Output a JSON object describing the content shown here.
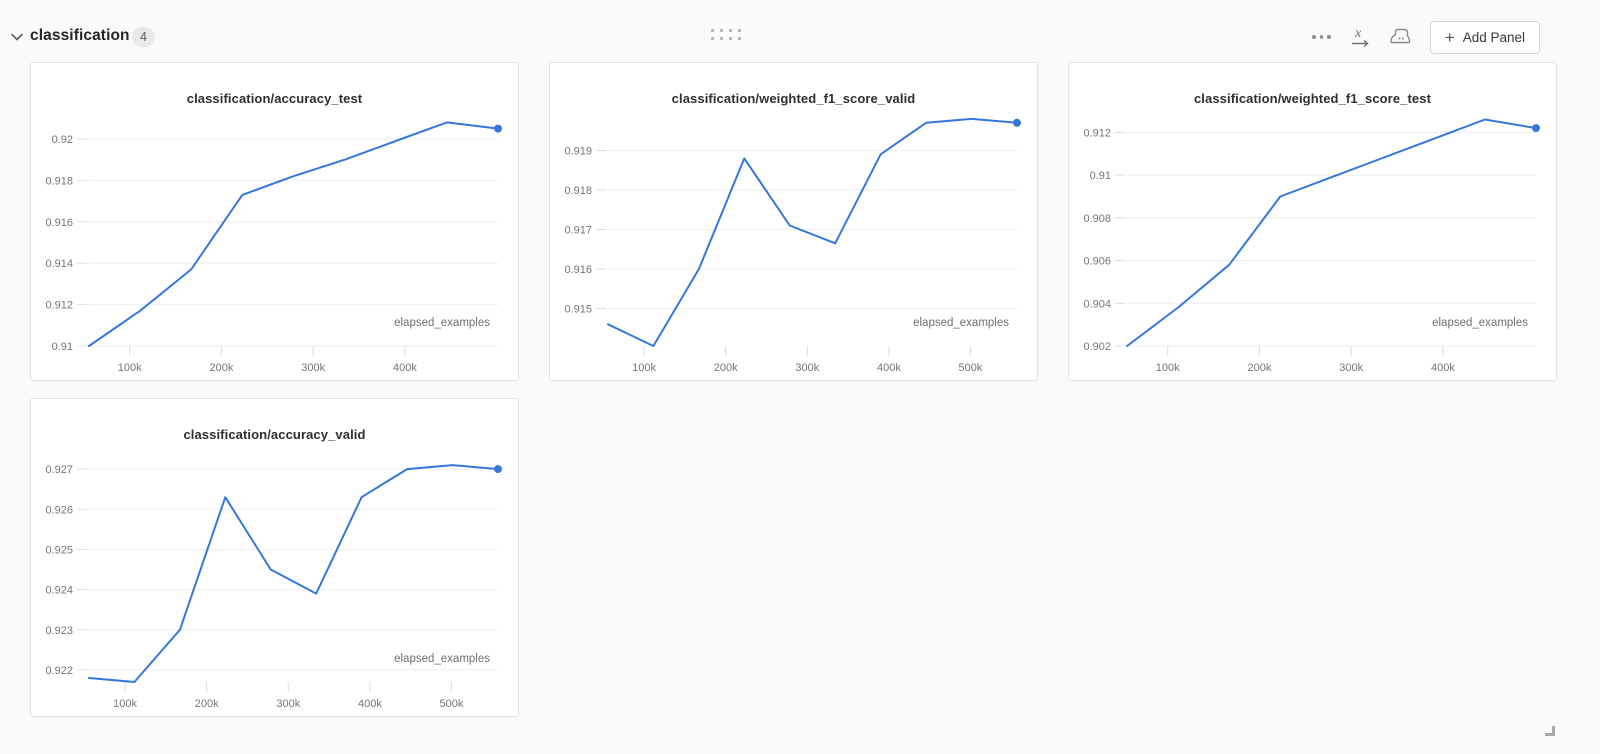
{
  "header": {
    "section_title": "classification",
    "panel_count": "4",
    "add_panel_label": "Add Panel",
    "add_panel_plus": "+"
  },
  "colors": {
    "line": "#3478db",
    "grid": "#ededed",
    "tick": "#dcdcdc",
    "axis_label": "#757575",
    "page_bg": "#fafafa",
    "panel_border": "#e3e3e3"
  },
  "chart_data": [
    {
      "type": "line",
      "title": "classification/accuracy_test",
      "xlabel": "elapsed_examples",
      "x": [
        55700,
        111400,
        167100,
        222800,
        278500,
        334200,
        389900,
        445700,
        501400
      ],
      "values": [
        0.91,
        0.9117,
        0.9137,
        0.9173,
        0.9182,
        0.919,
        0.9199,
        0.9208,
        0.9205
      ],
      "xlim": [
        55700,
        501400
      ],
      "ylim": [
        0.91,
        0.92135
      ],
      "yticks": {
        "values": [
          0.91,
          0.912,
          0.914,
          0.916,
          0.918,
          0.92
        ],
        "labels": [
          "0.91",
          "0.912",
          "0.914",
          "0.916",
          "0.918",
          "0.92"
        ]
      },
      "xticks": {
        "values": [
          100000,
          200000,
          300000,
          400000
        ],
        "labels": [
          "100k",
          "200k",
          "300k",
          "400k"
        ]
      },
      "grid": "horizontal",
      "legend": "none",
      "end_marker": true
    },
    {
      "type": "line",
      "title": "classification/weighted_f1_score_valid",
      "xlabel": "elapsed_examples",
      "x": [
        55700,
        111400,
        167100,
        222800,
        278500,
        334200,
        389900,
        445700,
        501400,
        557100
      ],
      "values": [
        0.9146,
        0.91405,
        0.916,
        0.9188,
        0.9171,
        0.91665,
        0.9189,
        0.9197,
        0.9198,
        0.9197
      ],
      "xlim": [
        55700,
        557100
      ],
      "ylim": [
        0.91405,
        0.92
      ],
      "yticks": {
        "values": [
          0.915,
          0.916,
          0.917,
          0.918,
          0.919
        ],
        "labels": [
          "0.915",
          "0.916",
          "0.917",
          "0.918",
          "0.919"
        ]
      },
      "xticks": {
        "values": [
          100000,
          200000,
          300000,
          400000,
          500000
        ],
        "labels": [
          "100k",
          "200k",
          "300k",
          "400k",
          "500k"
        ]
      },
      "grid": "horizontal",
      "legend": "none",
      "end_marker": true
    },
    {
      "type": "line",
      "title": "classification/weighted_f1_score_test",
      "xlabel": "elapsed_examples",
      "x": [
        55700,
        111400,
        167100,
        222800,
        278500,
        334200,
        389900,
        445700,
        501400
      ],
      "values": [
        0.902,
        0.9038,
        0.9058,
        0.909,
        0.9099,
        0.9108,
        0.9117,
        0.9126,
        0.9122
      ],
      "xlim": [
        55700,
        501400
      ],
      "ylim": [
        0.902,
        0.913
      ],
      "yticks": {
        "values": [
          0.902,
          0.904,
          0.906,
          0.908,
          0.91,
          0.912
        ],
        "labels": [
          "0.902",
          "0.904",
          "0.906",
          "0.908",
          "0.91",
          "0.912"
        ]
      },
      "xticks": {
        "values": [
          100000,
          200000,
          300000,
          400000
        ],
        "labels": [
          "100k",
          "200k",
          "300k",
          "400k"
        ]
      },
      "grid": "horizontal",
      "legend": "none",
      "end_marker": true
    },
    {
      "type": "line",
      "title": "classification/accuracy_valid",
      "xlabel": "elapsed_examples",
      "x": [
        55700,
        111400,
        167100,
        222800,
        278500,
        334200,
        389900,
        445700,
        501400,
        557100
      ],
      "values": [
        0.9218,
        0.9217,
        0.923,
        0.9263,
        0.9245,
        0.9239,
        0.9263,
        0.927,
        0.9271,
        0.927
      ],
      "xlim": [
        55700,
        557100
      ],
      "ylim": [
        0.9217,
        0.92755
      ],
      "yticks": {
        "values": [
          0.922,
          0.923,
          0.924,
          0.925,
          0.926,
          0.927
        ],
        "labels": [
          "0.922",
          "0.923",
          "0.924",
          "0.925",
          "0.926",
          "0.927"
        ]
      },
      "xticks": {
        "values": [
          100000,
          200000,
          300000,
          400000,
          500000
        ],
        "labels": [
          "100k",
          "200k",
          "300k",
          "400k",
          "500k"
        ]
      },
      "grid": "horizontal",
      "legend": "none",
      "end_marker": true
    }
  ]
}
